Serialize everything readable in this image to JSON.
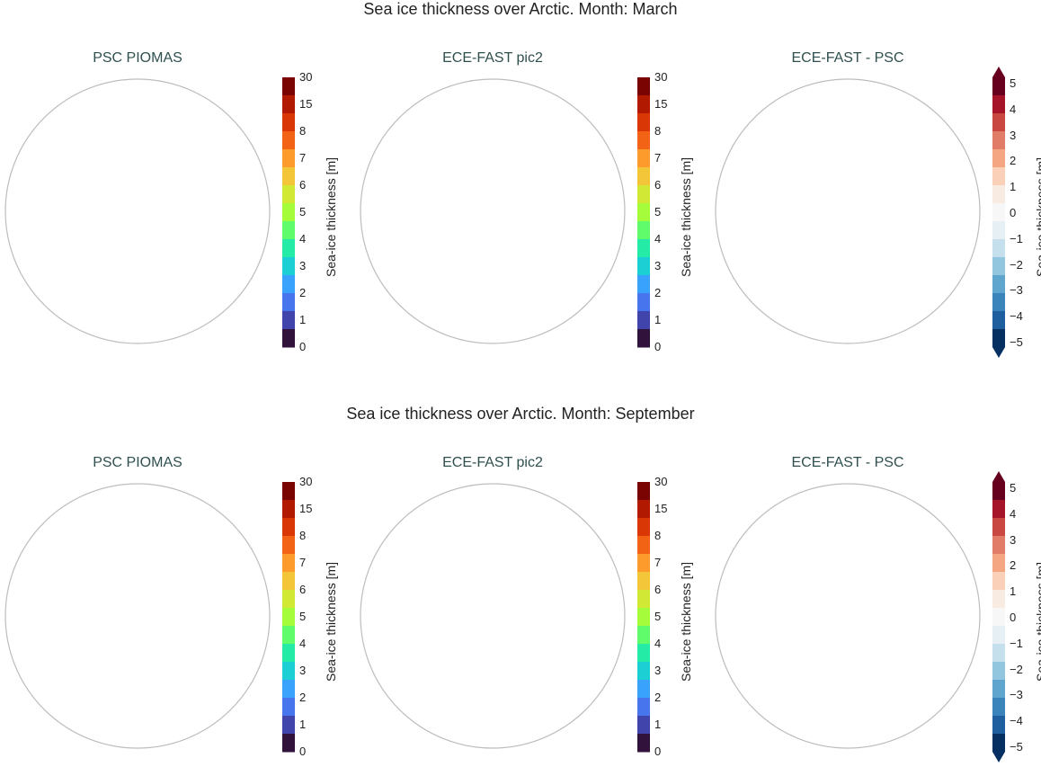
{
  "rows": [
    {
      "title": "Sea ice thickness over Arctic. Month: March",
      "panels": [
        {
          "title": "PSC PIOMAS",
          "type": "thickness",
          "ice": "piomas_march"
        },
        {
          "title": "ECE-FAST pic2",
          "type": "thickness",
          "ice": "ece_march"
        },
        {
          "title": "ECE-FAST -  PSC",
          "type": "diff",
          "ice": "diff_march"
        }
      ]
    },
    {
      "title": "Sea ice thickness over Arctic. Month: September",
      "panels": [
        {
          "title": "PSC PIOMAS",
          "type": "thickness",
          "ice": "piomas_sept"
        },
        {
          "title": "ECE-FAST pic2",
          "type": "thickness",
          "ice": "ece_sept"
        },
        {
          "title": "ECE-FAST -  PSC",
          "type": "diff",
          "ice": "diff_sept"
        }
      ]
    }
  ],
  "colorbars": {
    "thickness": {
      "label": "Sea-ice thickness [m]",
      "ticks": [
        "0",
        "1",
        "2",
        "3",
        "4",
        "5",
        "6",
        "7",
        "8",
        "15",
        "30"
      ],
      "colors": [
        "#30123b",
        "#4145ab",
        "#4675ed",
        "#39a2fc",
        "#1bcfd4",
        "#24eca6",
        "#61fc6c",
        "#a4fc3b",
        "#d1e834",
        "#f3c63a",
        "#fe9b2d",
        "#f36315",
        "#d93806",
        "#b11901",
        "#7a0402"
      ]
    },
    "diff": {
      "label": "Sea-ice thickness [m]",
      "ticks": [
        "5",
        "4",
        "3",
        "2",
        "1",
        "0",
        "−1",
        "−2",
        "−3",
        "−4",
        "−5"
      ],
      "colors": [
        "#67001f",
        "#a51429",
        "#c94741",
        "#e07c67",
        "#f4a582",
        "#fbd0b9",
        "#f8ebe1",
        "#f7f7f7",
        "#e6eff4",
        "#c5dfec",
        "#92c5de",
        "#5fa5cd",
        "#3a84bb",
        "#1f5f9f",
        "#053061"
      ]
    }
  },
  "colors": {
    "land": "#efe9d7",
    "coast": "#111111",
    "ocean_outline": "#bdbdbd",
    "ice_thick_red": "#7a0402",
    "diff_dark_red": "#6b0014"
  }
}
